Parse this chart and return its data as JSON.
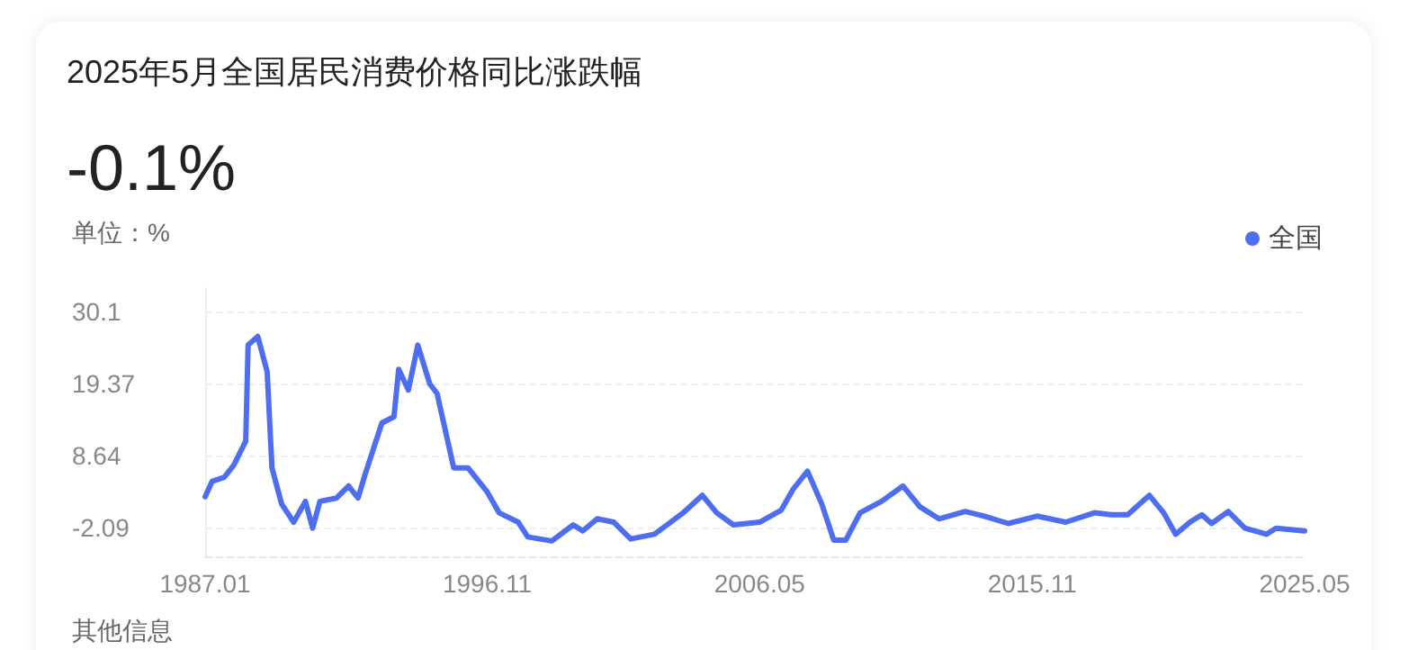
{
  "chart_data": {
    "type": "line",
    "title": "2025年5月全国居民消费价格同比涨跌幅",
    "subtitle": "-0.1%",
    "ylabel": "单位：%",
    "annotations": [
      "其他信息"
    ],
    "x": [
      "1987-01",
      "1987-04",
      "1987-09",
      "1988-01",
      "1988-06",
      "1988-07",
      "1988-11",
      "1989-03",
      "1989-05",
      "1989-09",
      "1990-02",
      "1990-07",
      "1990-10",
      "1991-01",
      "1991-08",
      "1992-01",
      "1992-05",
      "1992-08",
      "1993-03",
      "1993-08",
      "1993-10",
      "1994-02",
      "1994-06",
      "1994-11",
      "1995-02",
      "1995-09",
      "1996-03",
      "1996-11",
      "1997-04",
      "1997-12",
      "1998-04",
      "1999-02",
      "1999-11",
      "2000-03",
      "2000-09",
      "2001-04",
      "2001-11",
      "2002-09",
      "2003-09",
      "2004-05",
      "2004-11",
      "2005-06",
      "2006-05",
      "2007-02",
      "2007-07",
      "2008-01",
      "2008-07",
      "2008-12",
      "2009-05",
      "2009-11",
      "2010-08",
      "2011-05",
      "2011-12",
      "2012-08",
      "2013-07",
      "2014-03",
      "2015-01",
      "2016-01",
      "2017-01",
      "2018-01",
      "2018-08",
      "2019-03",
      "2019-12",
      "2020-06",
      "2020-11",
      "2021-05",
      "2021-10",
      "2022-02",
      "2022-09",
      "2023-04",
      "2024-01",
      "2024-05",
      "2024-11",
      "2025-05"
    ],
    "series": [
      {
        "name": "全国",
        "color": "#4e6ef2",
        "values": [
          2.5,
          4.8,
          5.4,
          7.2,
          10.8,
          25.1,
          26.4,
          21.1,
          6.8,
          1.4,
          -1.3,
          1.8,
          -2.2,
          1.8,
          2.3,
          4.1,
          2.3,
          5.9,
          13.5,
          14.4,
          21.5,
          18.4,
          25.1,
          19.3,
          17.9,
          6.8,
          6.8,
          3.2,
          0.1,
          -1.3,
          -3.5,
          -4.1,
          -1.7,
          -2.6,
          -0.8,
          -1.3,
          -3.8,
          -3.1,
          0.1,
          2.7,
          0.1,
          -1.7,
          -1.3,
          0.5,
          3.6,
          6.3,
          1.4,
          -4.0,
          -4.0,
          0.1,
          1.8,
          4.1,
          1.0,
          -0.8,
          0.3,
          -0.4,
          -1.5,
          -0.4,
          -1.3,
          0.1,
          -0.2,
          -0.2,
          2.7,
          0.1,
          -3.1,
          -1.3,
          -0.2,
          -1.5,
          0.3,
          -2.2,
          -3.1,
          -2.2,
          -2.4,
          -2.6
        ]
      }
    ],
    "xlim": [
      "1987-01",
      "2025-05"
    ],
    "xticks": [
      {
        "value": "1987-01",
        "label": "1987.01"
      },
      {
        "value": "1996-11",
        "label": "1996.11"
      },
      {
        "value": "2006-05",
        "label": "2006.05"
      },
      {
        "value": "2015-11",
        "label": "2015.11"
      },
      {
        "value": "2025-05",
        "label": "2025.05"
      }
    ],
    "ylim": [
      -6.4,
      33.6
    ],
    "yticks": [
      -2.09,
      8.64,
      19.37,
      30.1
    ],
    "grid": "y",
    "legend": "top right",
    "marker": "none",
    "line_style": "solid"
  }
}
